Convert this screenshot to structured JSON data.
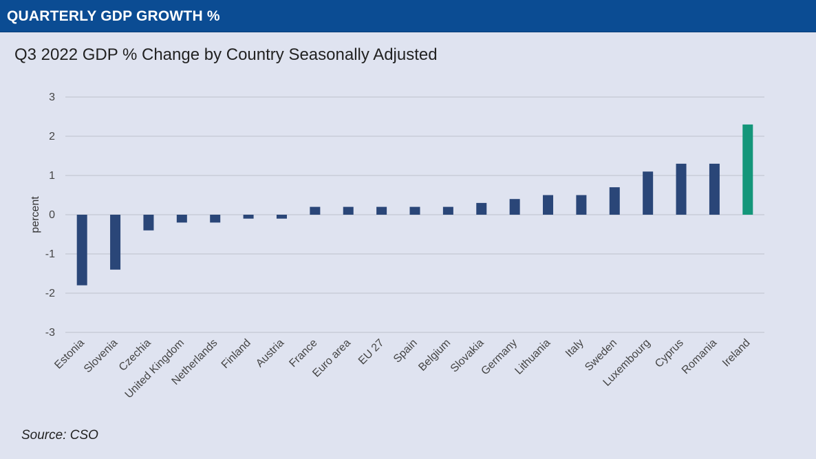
{
  "header": {
    "title": "QUARTERLY GDP GROWTH %"
  },
  "source": "Source: CSO",
  "colors": {
    "banner": "#0b4c93",
    "background": "#dfe3f0",
    "bar": "#2a4678",
    "highlight": "#14967a",
    "grid": "#c4c8d4"
  },
  "chart_data": {
    "type": "bar",
    "title": "Q3 2022 GDP % Change by Country Seasonally Adjusted",
    "xlabel": "",
    "ylabel": "percent",
    "ylim": [
      -3,
      3
    ],
    "yticks": [
      3,
      2,
      1,
      0,
      -1,
      -2,
      -3
    ],
    "grid": true,
    "categories": [
      "Estonia",
      "Slovenia",
      "Czechia",
      "United Kingdom",
      "Netherlands",
      "Finland",
      "Austria",
      "France",
      "Euro area",
      "EU 27",
      "Spain",
      "Belgium",
      "Slovakia",
      "Germany",
      "Lithuania",
      "Italy",
      "Sweden",
      "Luxembourg",
      "Cyprus",
      "Romania",
      "Ireland"
    ],
    "values": [
      -1.8,
      -1.4,
      -0.4,
      -0.2,
      -0.2,
      -0.1,
      -0.1,
      0.2,
      0.2,
      0.2,
      0.2,
      0.2,
      0.3,
      0.4,
      0.5,
      0.5,
      0.7,
      1.1,
      1.3,
      1.3,
      2.3
    ],
    "highlight_category": "Ireland"
  }
}
